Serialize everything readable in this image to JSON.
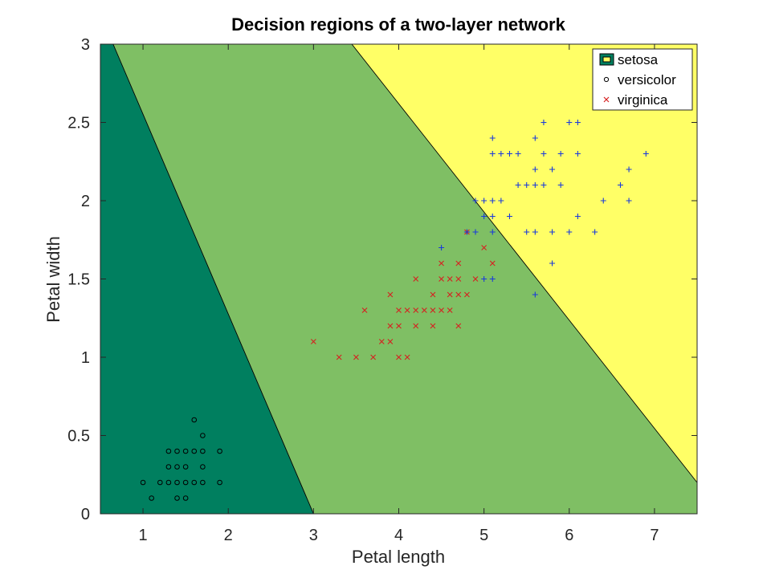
{
  "chart_data": {
    "type": "scatter",
    "title": "Decision regions of a two-layer network",
    "xlabel": "Petal length",
    "ylabel": "Petal width",
    "xlim": [
      0.5,
      7.5
    ],
    "ylim": [
      0,
      3
    ],
    "xticks": [
      1,
      2,
      3,
      4,
      5,
      6,
      7
    ],
    "yticks": [
      0,
      0.5,
      1,
      1.5,
      2,
      2.5,
      3
    ],
    "xtick_labels": [
      "1",
      "2",
      "3",
      "4",
      "5",
      "6",
      "7"
    ],
    "ytick_labels": [
      "0",
      "0.5",
      "1",
      "1.5",
      "2",
      "2.5",
      "3"
    ],
    "grid": false,
    "legend_position": "top-right",
    "legend": [
      {
        "label": "setosa",
        "marker": "patch"
      },
      {
        "label": "versicolor",
        "marker": "circle"
      },
      {
        "label": "virginica",
        "marker": "x"
      }
    ],
    "regions": [
      {
        "class": "setosa",
        "color": "#007f5f",
        "boundary": [
          [
            0.5,
            3.0
          ],
          [
            0.65,
            3.0
          ],
          [
            3.0,
            0.0
          ],
          [
            0.5,
            0.0
          ]
        ]
      },
      {
        "class": "versicolor",
        "color": "#7fbf64",
        "boundary": [
          [
            0.65,
            3.0
          ],
          [
            3.45,
            3.0
          ],
          [
            7.5,
            0.2
          ],
          [
            7.5,
            0.0
          ],
          [
            3.0,
            0.0
          ]
        ]
      },
      {
        "class": "virginica",
        "color": "#ffff66",
        "boundary": [
          [
            3.45,
            3.0
          ],
          [
            7.5,
            3.0
          ],
          [
            7.5,
            0.2
          ]
        ]
      }
    ],
    "series": [
      {
        "name": "setosa",
        "marker": "circle",
        "color": "#000000",
        "points": [
          [
            1.0,
            0.2
          ],
          [
            1.1,
            0.1
          ],
          [
            1.2,
            0.2
          ],
          [
            1.3,
            0.2
          ],
          [
            1.3,
            0.3
          ],
          [
            1.3,
            0.4
          ],
          [
            1.4,
            0.1
          ],
          [
            1.4,
            0.2
          ],
          [
            1.4,
            0.3
          ],
          [
            1.4,
            0.4
          ],
          [
            1.5,
            0.1
          ],
          [
            1.5,
            0.2
          ],
          [
            1.5,
            0.3
          ],
          [
            1.5,
            0.4
          ],
          [
            1.6,
            0.2
          ],
          [
            1.6,
            0.4
          ],
          [
            1.6,
            0.6
          ],
          [
            1.7,
            0.2
          ],
          [
            1.7,
            0.3
          ],
          [
            1.7,
            0.4
          ],
          [
            1.7,
            0.5
          ],
          [
            1.9,
            0.2
          ],
          [
            1.9,
            0.4
          ]
        ]
      },
      {
        "name": "versicolor",
        "marker": "x",
        "color": "#d62020",
        "points": [
          [
            3.0,
            1.1
          ],
          [
            3.3,
            1.0
          ],
          [
            3.5,
            1.0
          ],
          [
            3.6,
            1.3
          ],
          [
            3.7,
            1.0
          ],
          [
            3.8,
            1.1
          ],
          [
            3.9,
            1.1
          ],
          [
            3.9,
            1.2
          ],
          [
            3.9,
            1.4
          ],
          [
            4.0,
            1.0
          ],
          [
            4.0,
            1.2
          ],
          [
            4.0,
            1.3
          ],
          [
            4.1,
            1.0
          ],
          [
            4.1,
            1.3
          ],
          [
            4.2,
            1.2
          ],
          [
            4.2,
            1.3
          ],
          [
            4.2,
            1.5
          ],
          [
            4.3,
            1.3
          ],
          [
            4.4,
            1.2
          ],
          [
            4.4,
            1.3
          ],
          [
            4.4,
            1.4
          ],
          [
            4.5,
            1.3
          ],
          [
            4.5,
            1.5
          ],
          [
            4.5,
            1.6
          ],
          [
            4.6,
            1.3
          ],
          [
            4.6,
            1.4
          ],
          [
            4.6,
            1.5
          ],
          [
            4.7,
            1.2
          ],
          [
            4.7,
            1.4
          ],
          [
            4.7,
            1.5
          ],
          [
            4.7,
            1.6
          ],
          [
            4.8,
            1.4
          ],
          [
            4.8,
            1.8
          ],
          [
            4.9,
            1.5
          ],
          [
            5.0,
            1.7
          ],
          [
            5.1,
            1.6
          ]
        ]
      },
      {
        "name": "virginica",
        "marker": "plus",
        "color": "#1a3adb",
        "points": [
          [
            4.5,
            1.7
          ],
          [
            4.8,
            1.8
          ],
          [
            4.9,
            1.8
          ],
          [
            4.9,
            2.0
          ],
          [
            5.0,
            1.5
          ],
          [
            5.0,
            1.9
          ],
          [
            5.0,
            2.0
          ],
          [
            5.1,
            1.5
          ],
          [
            5.1,
            1.8
          ],
          [
            5.1,
            1.9
          ],
          [
            5.1,
            2.0
          ],
          [
            5.1,
            2.3
          ],
          [
            5.1,
            2.4
          ],
          [
            5.2,
            2.0
          ],
          [
            5.2,
            2.3
          ],
          [
            5.3,
            1.9
          ],
          [
            5.3,
            2.3
          ],
          [
            5.4,
            2.1
          ],
          [
            5.4,
            2.3
          ],
          [
            5.5,
            1.8
          ],
          [
            5.5,
            2.1
          ],
          [
            5.6,
            1.4
          ],
          [
            5.6,
            1.8
          ],
          [
            5.6,
            2.1
          ],
          [
            5.6,
            2.2
          ],
          [
            5.6,
            2.4
          ],
          [
            5.7,
            2.1
          ],
          [
            5.7,
            2.3
          ],
          [
            5.7,
            2.5
          ],
          [
            5.8,
            1.6
          ],
          [
            5.8,
            1.8
          ],
          [
            5.8,
            2.2
          ],
          [
            5.9,
            2.1
          ],
          [
            5.9,
            2.3
          ],
          [
            6.0,
            1.8
          ],
          [
            6.0,
            2.5
          ],
          [
            6.1,
            1.9
          ],
          [
            6.1,
            2.3
          ],
          [
            6.1,
            2.5
          ],
          [
            6.3,
            1.8
          ],
          [
            6.4,
            2.0
          ],
          [
            6.6,
            2.1
          ],
          [
            6.7,
            2.0
          ],
          [
            6.7,
            2.2
          ],
          [
            6.9,
            2.3
          ]
        ]
      }
    ]
  }
}
